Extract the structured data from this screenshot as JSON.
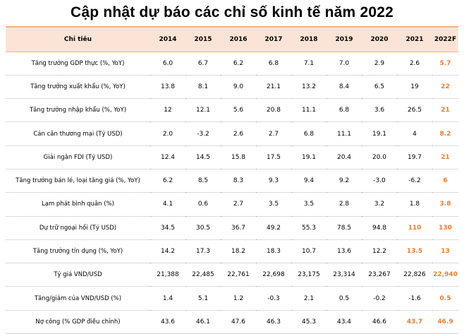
{
  "title": "Cập nhật dự báo các chỉ số kinh tế năm 2022",
  "accent_color": "#ed7d31",
  "header_bg": "#fbe4d5",
  "headers": [
    "Chỉ tiêu",
    "2014",
    "2015",
    "2016",
    "2017",
    "2018",
    "2019",
    "2020",
    "2021",
    "2022F"
  ],
  "rows": [
    {
      "label": "Tăng trưởng GDP thực (%, YoY)",
      "values": [
        "6.0",
        "6.7",
        "6.2",
        "6.8",
        "7.1",
        "7.0",
        "2.9",
        "2.6",
        "5.7"
      ]
    },
    {
      "label": "Tăng trưởng xuất khẩu (%, YoY)",
      "values": [
        "13.8",
        "8.1",
        "9.0",
        "21.1",
        "13.2",
        "8.4",
        "6.5",
        "19",
        "22"
      ]
    },
    {
      "label": "Tăng trưởng nhập khẩu (%, YoY)",
      "values": [
        "12",
        "12.1",
        "5.6",
        "20.8",
        "11.1",
        "6.8",
        "3.6",
        "26.5",
        "21"
      ]
    },
    {
      "label": "Cán cân thương mại (Tỷ USD)",
      "values": [
        "2.0",
        "-3.2",
        "2.6",
        "2.7",
        "6.8",
        "11.1",
        "19.1",
        "4",
        "8.2"
      ]
    },
    {
      "label": "Giải ngân FDI (Tỷ USD)",
      "values": [
        "12.4",
        "14.5",
        "15.8",
        "17.5",
        "19.1",
        "20.4",
        "20.0",
        "19.7",
        "21"
      ]
    },
    {
      "label": "Tăng trưởng bán lẻ, loại tăng giá (%, YoY)",
      "values": [
        "6.2",
        "8.5",
        "8.3",
        "9.3",
        "9.4",
        "9.2",
        "-3.0",
        "-6.2",
        "6"
      ]
    },
    {
      "label": "Lạm phát bình quân (%)",
      "values": [
        "4.1",
        "0.6",
        "2.7",
        "3.5",
        "3.5",
        "2.8",
        "3.2",
        "1.8",
        "3.8"
      ]
    },
    {
      "label": "Dự trữ ngoại hối (Tỷ USD)",
      "values": [
        "34.5",
        "30.5",
        "36.7",
        "49.2",
        "55.3",
        "78.5",
        "94.8",
        "110",
        "130"
      ]
    },
    {
      "label": "Tăng trưởng tín dụng (%, YoY)",
      "values": [
        "14.2",
        "17.3",
        "18.2",
        "18.3",
        "10.7",
        "13.6",
        "12.2",
        "13.5",
        "13"
      ]
    },
    {
      "label": "Tỷ giá VND/USD",
      "values": [
        "21,388",
        "22,485",
        "22,761",
        "22,698",
        "23,175",
        "23,314",
        "23,267",
        "22,826",
        "22,940"
      ]
    },
    {
      "label": "Tăng/giảm của VND/USD (%)",
      "values": [
        "1.4",
        "5.1",
        "1.2",
        "-0.3",
        "2.1",
        "0.5",
        "-0.2",
        "-1.6",
        "0.5"
      ]
    },
    {
      "label": "Nợ công (% GDP điều chỉnh)",
      "values": [
        "43.6",
        "46.1",
        "47.6",
        "46.3",
        "45.3",
        "43.4",
        "46.6",
        "43.7",
        "46.9"
      ]
    }
  ],
  "highlighted_2021_rows": [
    7,
    8,
    11
  ]
}
